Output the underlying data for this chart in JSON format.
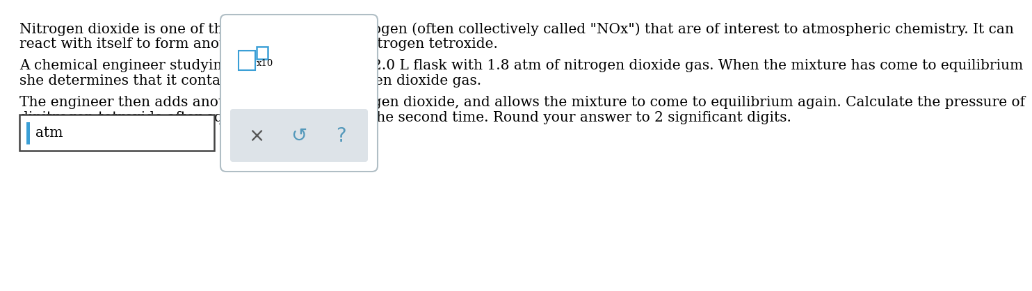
{
  "background_color": "#ffffff",
  "text_color": "#000000",
  "paragraph1_line1": "Nitrogen dioxide is one of the many oxides of nitrogen (often collectively called \"NOx\") that are of interest to atmospheric chemistry. It can",
  "paragraph1_line2": "react with itself to form another form of NOx, dinitrogen tetroxide.",
  "paragraph2_line1": "A chemical engineer studying this reaction fills a 2.0 L flask with 1.8 atm of nitrogen dioxide gas. When the mixture has come to equilibrium",
  "paragraph2_line2": "she determines that it contains 0.70 atm of nitrogen dioxide gas.",
  "paragraph3_line1": "The engineer then adds another 0.45 atm of nitrogen dioxide, and allows the mixture to come to equilibrium again. Calculate the pressure of",
  "paragraph3_line2": "dinitrogen tetroxide after equilibrium is reached the second time. Round your answer to 2 significant digits.",
  "answer_box_label": "atm",
  "x10_label": "x10",
  "input_border_color": "#3a9fd6",
  "box2_border_color": "#b0bec5",
  "button_bg_color": "#dde3e8",
  "font_size_main": 14.5,
  "font_size_small": 9.5,
  "font_family": "serif"
}
